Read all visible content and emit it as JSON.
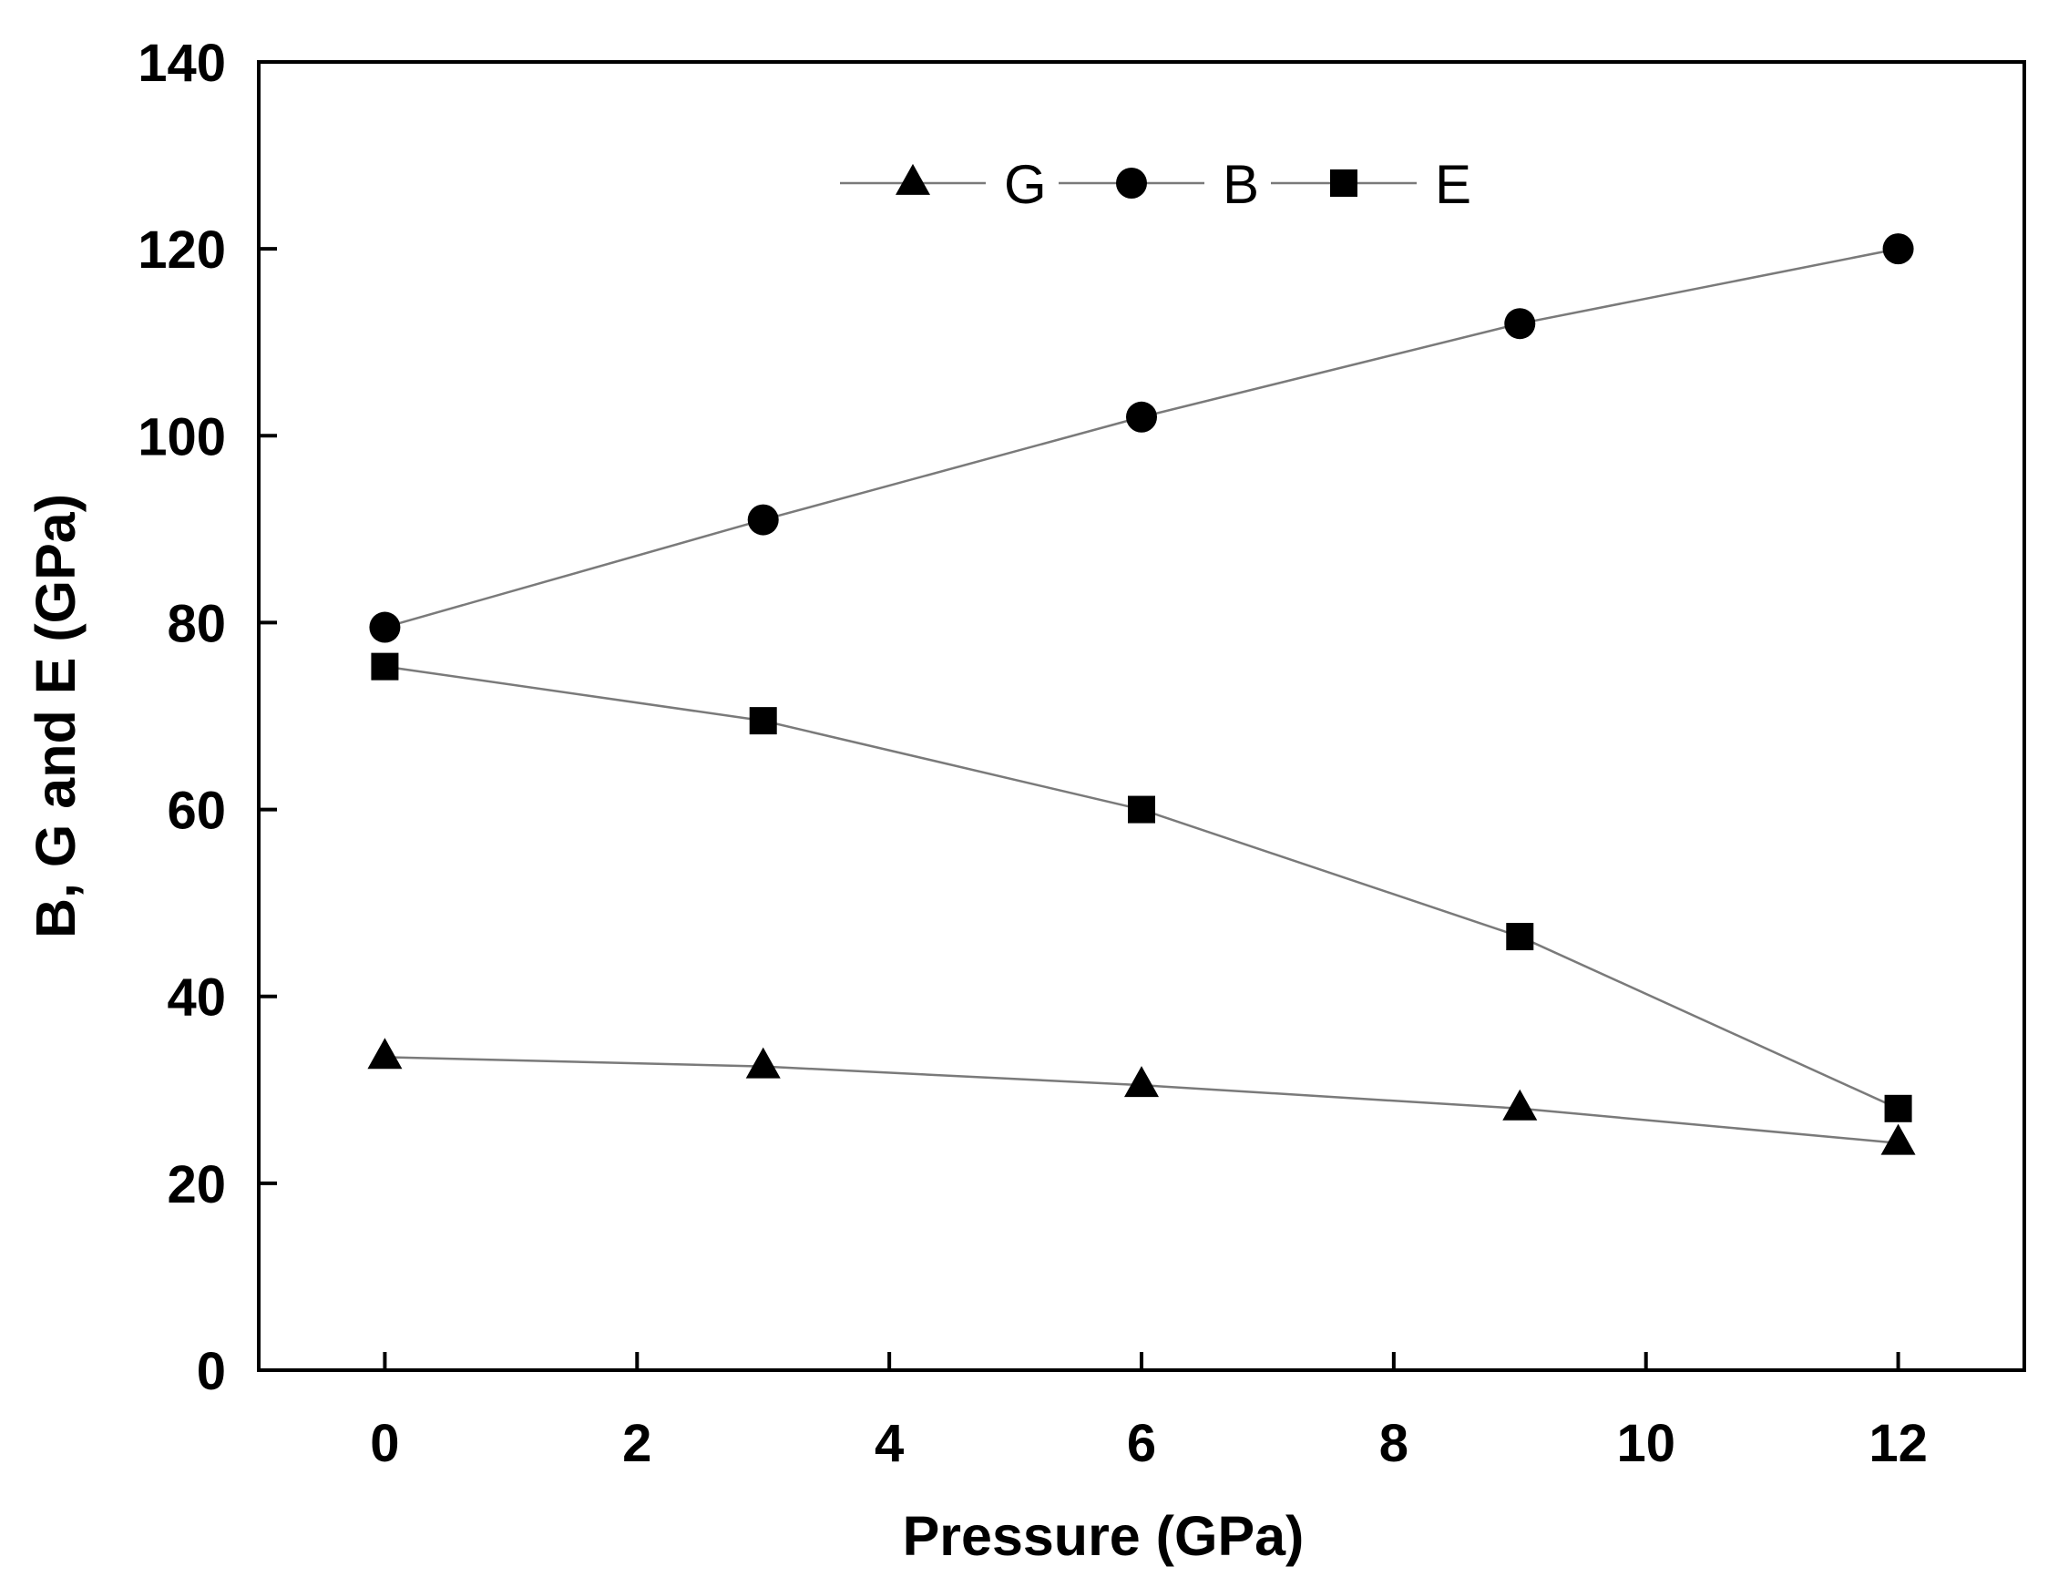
{
  "chart_data": {
    "type": "line",
    "title": "",
    "xlabel": "Pressure (GPa)",
    "ylabel": "B, G and E (GPa)",
    "xlim": [
      -1,
      13
    ],
    "ylim": [
      0,
      140
    ],
    "xticks": [
      "0",
      "2",
      "4",
      "6",
      "8",
      "10",
      "12"
    ],
    "yticks": [
      "0",
      "20",
      "40",
      "60",
      "80",
      "100",
      "120",
      "140"
    ],
    "grid": false,
    "legend_position": "top-center",
    "x": [
      0,
      3,
      6,
      9,
      12
    ],
    "series": [
      {
        "name": "G",
        "marker": "triangle",
        "values": [
          33.5,
          32.5,
          30.5,
          28,
          24.3
        ]
      },
      {
        "name": "B",
        "marker": "circle",
        "values": [
          79.5,
          91,
          102,
          112,
          120
        ]
      },
      {
        "name": "E",
        "marker": "square",
        "values": [
          75.3,
          69.5,
          60,
          46.4,
          28
        ]
      }
    ],
    "colors": {
      "line": "#7a7a7a",
      "marker": "#000000",
      "axis": "#000000"
    }
  }
}
